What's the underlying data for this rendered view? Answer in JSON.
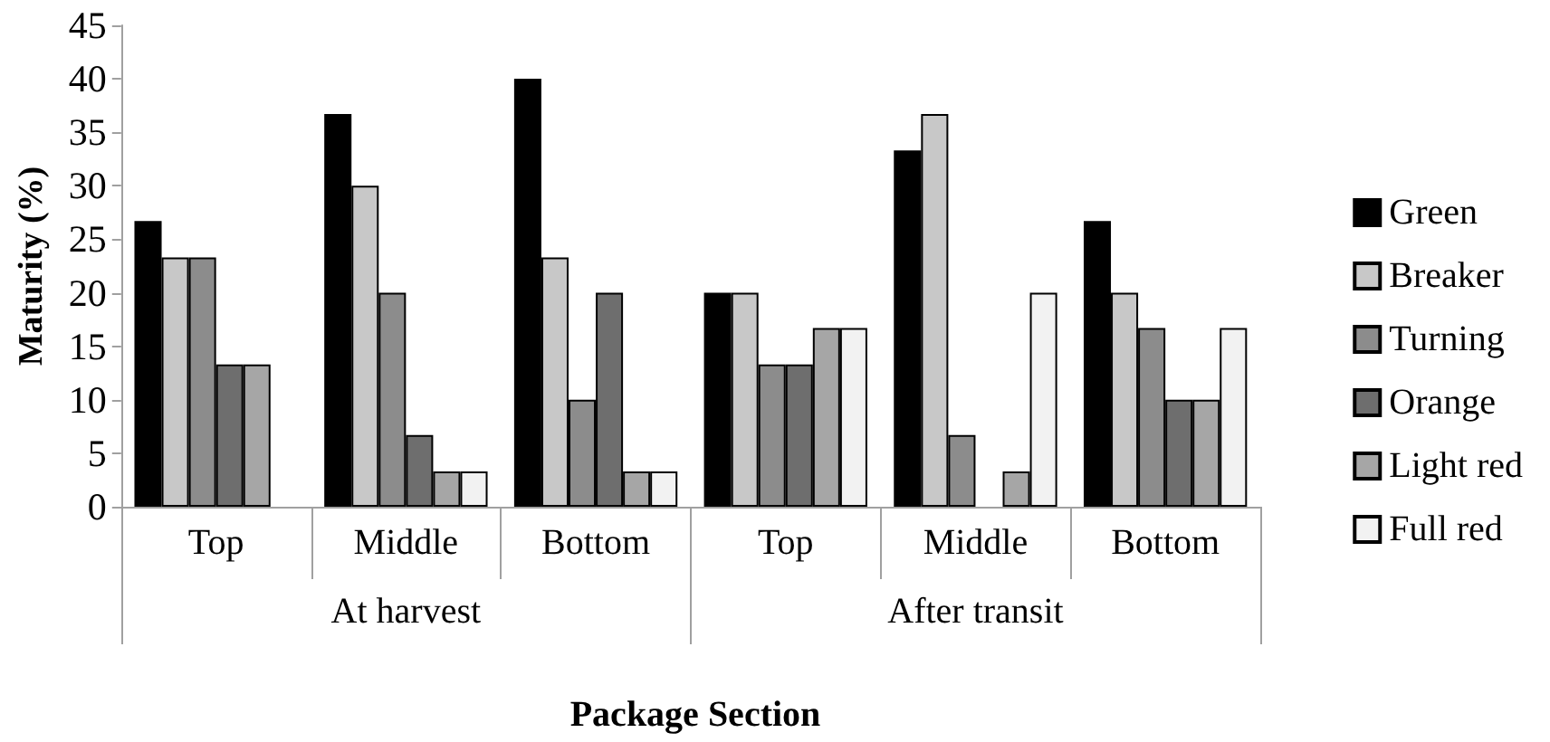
{
  "chart_data": {
    "type": "bar",
    "xlabel": "Package Section",
    "ylabel": "Maturity (%)",
    "categories": [
      "Top",
      "Middle",
      "Bottom",
      "Top",
      "Middle",
      "Bottom"
    ],
    "annotations": [
      "At harvest",
      "After transit"
    ],
    "series": [
      {
        "name": "Green",
        "color": "#000000",
        "values": [
          26.7,
          36.7,
          40,
          20,
          33.3,
          26.7
        ]
      },
      {
        "name": "Breaker",
        "color": "#c8c8c8",
        "values": [
          23.3,
          30,
          23.3,
          20,
          36.7,
          20
        ]
      },
      {
        "name": "Turning",
        "color": "#8c8c8c",
        "values": [
          23.3,
          20,
          10,
          13.3,
          6.7,
          16.7
        ]
      },
      {
        "name": "Orange",
        "color": "#6e6e6e",
        "values": [
          13.3,
          6.7,
          20,
          13.3,
          null,
          10
        ]
      },
      {
        "name": "Light red",
        "color": "#a6a6a6",
        "values": [
          13.3,
          3.3,
          3.3,
          16.7,
          3.3,
          10
        ]
      },
      {
        "name": "Full red",
        "color": "#f2f2f2",
        "values": [
          null,
          3.3,
          3.3,
          16.7,
          20,
          16.7
        ]
      }
    ],
    "ylim": [
      0,
      45
    ],
    "yticks": [
      0,
      5,
      10,
      15,
      20,
      25,
      30,
      35,
      40,
      45
    ],
    "grid": false,
    "legend": "right"
  }
}
